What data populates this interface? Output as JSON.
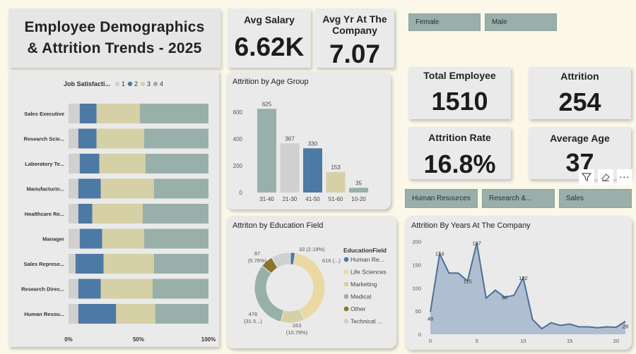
{
  "title": {
    "line1": "Employee Demographics",
    "line2": "& Attrition Trends - 2025"
  },
  "kpis": {
    "avg_salary": {
      "label": "Avg Salary",
      "value": "6.62K"
    },
    "avg_years": {
      "label_line1": "Avg Yr At The",
      "label_line2": "Company",
      "value": "7.07"
    },
    "total_employee": {
      "label": "Total Employee",
      "value": "1510"
    },
    "attrition": {
      "label": "Attrition",
      "value": "254"
    },
    "attrition_rate": {
      "label": "Attrition Rate",
      "value": "16.8%"
    },
    "average_age": {
      "label": "Average Age",
      "value": "37"
    }
  },
  "gender_slicer": [
    "Female",
    "Male"
  ],
  "department_slicer": [
    "Human Resources",
    "Research &...",
    "Sales"
  ],
  "toolbar": {
    "filter_icon": "filter-icon",
    "eraser_icon": "eraser-icon",
    "more_icon": "more-options-icon"
  },
  "colors": {
    "c1": "#d0d0d0",
    "c2": "#4d79a5",
    "c3": "#d6d0a6",
    "c4": "#98b0a9",
    "other": "#8a7530"
  },
  "chart_data": [
    {
      "type": "bar",
      "orientation": "horizontal-stacked-100",
      "legend_title": "Job Satisfacti...",
      "legend": [
        "1",
        "2",
        "3",
        "4"
      ],
      "categories": [
        "Sales Executive",
        "Research Scie...",
        "Laboratory Te...",
        "Manufacturin...",
        "Healthcare Re...",
        "Manager",
        "Sales Represe...",
        "Research Direc...",
        "Human Resou..."
      ],
      "series": [
        {
          "name": "1",
          "values": [
            8,
            7,
            8,
            7,
            7,
            8,
            5,
            7,
            7
          ]
        },
        {
          "name": "2",
          "values": [
            12,
            13,
            14,
            16,
            10,
            16,
            20,
            16,
            27
          ]
        },
        {
          "name": "3",
          "values": [
            31,
            34,
            33,
            38,
            36,
            30,
            36,
            37,
            28
          ]
        },
        {
          "name": "4",
          "values": [
            49,
            46,
            45,
            39,
            47,
            46,
            39,
            40,
            38
          ]
        }
      ],
      "x_ticks": [
        "0%",
        "50%",
        "100%"
      ]
    },
    {
      "type": "bar",
      "title": "Attrition by Age Group",
      "categories": [
        "31-40",
        "21-30",
        "41-50",
        "51-60",
        "10-20"
      ],
      "values": [
        625,
        367,
        330,
        153,
        35
      ],
      "y_ticks": [
        "0",
        "200",
        "400",
        "600"
      ],
      "ylim": [
        0,
        700
      ]
    },
    {
      "type": "pie",
      "subtype": "donut",
      "title": "Attriton by Education Field",
      "legend_title": "EducationField",
      "slices": [
        {
          "name": "Human Re...",
          "value": 33,
          "label": "33 (2.19%)"
        },
        {
          "name": "Life Sciences",
          "value": 616,
          "label": "616 (...)"
        },
        {
          "name": "Marketing",
          "value": 163,
          "label": "163 (10.79%)"
        },
        {
          "name": "Medical",
          "value": 476,
          "label": "476 (31.5...)"
        },
        {
          "name": "Other",
          "value": 87,
          "label": "87 (5.76%)"
        },
        {
          "name": "Technical ...",
          "value": 135,
          "label": ""
        }
      ]
    },
    {
      "type": "area",
      "title": "Attrition By Years At The Company",
      "x": [
        0,
        1,
        2,
        3,
        4,
        5,
        6,
        7,
        8,
        9,
        10,
        11,
        12,
        13,
        14,
        15,
        16,
        17,
        18,
        19,
        20,
        21
      ],
      "y": [
        48,
        174,
        132,
        132,
        115,
        197,
        78,
        95,
        80,
        84,
        122,
        32,
        12,
        25,
        19,
        22,
        16,
        16,
        14,
        16,
        15,
        28
      ],
      "point_labels": {
        "0": "48",
        "1": "174",
        "4": "115",
        "5": "197",
        "8": "80",
        "10": "122",
        "21": "28"
      },
      "x_ticks": [
        "0",
        "5",
        "10",
        "15",
        "20"
      ],
      "y_ticks": [
        "0",
        "50",
        "100",
        "150",
        "200"
      ],
      "ylim": [
        0,
        210
      ]
    }
  ]
}
